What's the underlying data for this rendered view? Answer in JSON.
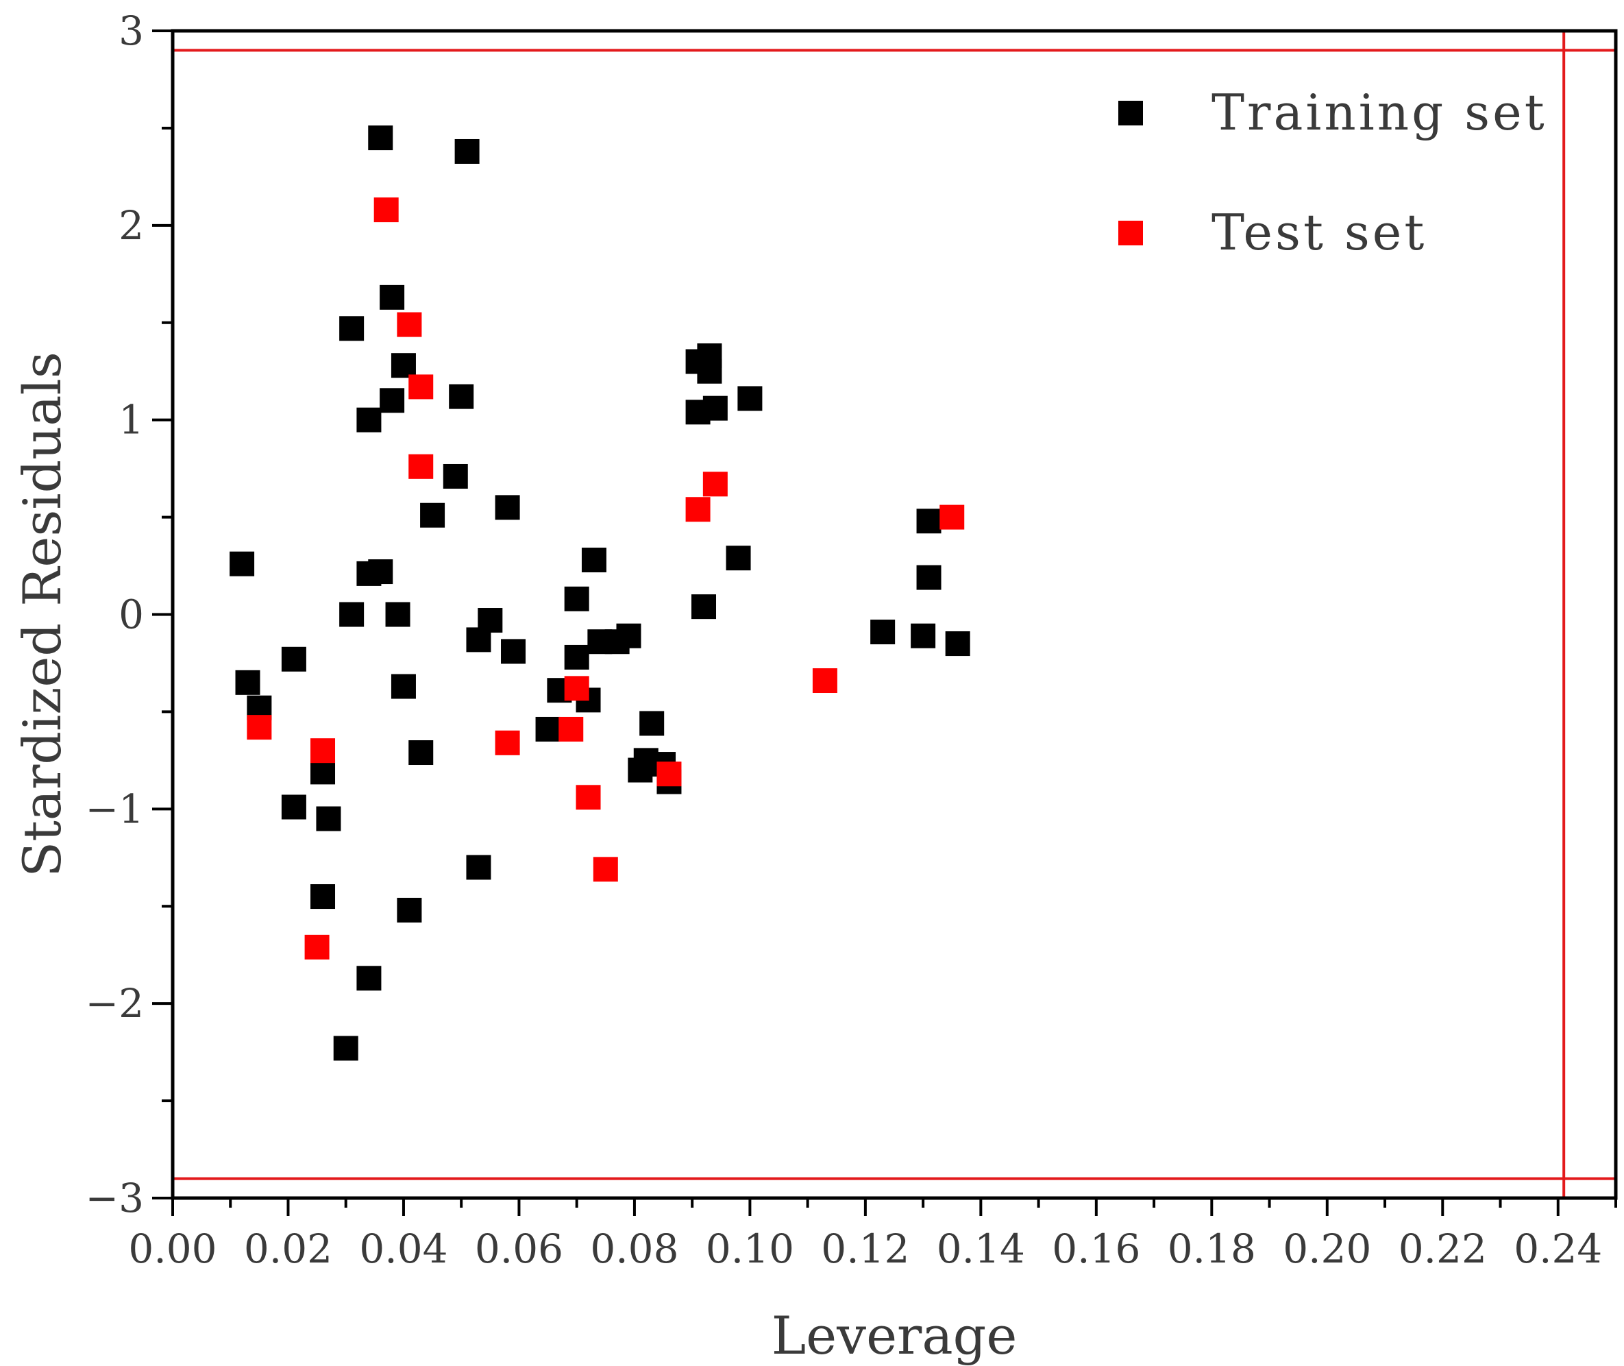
{
  "chart_data": {
    "type": "scatter",
    "title": "",
    "xlabel": "Leverage",
    "ylabel": "Stardized Residuals",
    "xlim": [
      0.0,
      0.25
    ],
    "ylim": [
      -3,
      3
    ],
    "x_ticks": [
      0.0,
      0.02,
      0.04,
      0.06,
      0.08,
      0.1,
      0.12,
      0.14,
      0.16,
      0.18,
      0.2,
      0.22,
      0.24
    ],
    "x_tick_labels": [
      "0.00",
      "0.02",
      "0.04",
      "0.06",
      "0.08",
      "0.10",
      "0.12",
      "0.14",
      "0.16",
      "0.18",
      "0.20",
      "0.22",
      "0.24"
    ],
    "y_ticks": [
      -3,
      -2,
      -1,
      0,
      1,
      2,
      3
    ],
    "y_tick_labels": [
      "−3",
      "−2",
      "−1",
      "0",
      "1",
      "2",
      "3"
    ],
    "grid": false,
    "legend_position": "top-right",
    "reference_lines": {
      "horizontal": [
        2.9,
        -2.9
      ],
      "vertical": [
        0.241
      ],
      "color": "#e31a1c"
    },
    "series": [
      {
        "name": "Training set",
        "color": "#000000",
        "marker": "square",
        "points": [
          [
            0.012,
            0.26
          ],
          [
            0.013,
            -0.35
          ],
          [
            0.015,
            -0.48
          ],
          [
            0.021,
            -0.23
          ],
          [
            0.021,
            -0.99
          ],
          [
            0.026,
            -0.81
          ],
          [
            0.026,
            -1.45
          ],
          [
            0.027,
            -1.05
          ],
          [
            0.03,
            -2.23
          ],
          [
            0.031,
            1.47
          ],
          [
            0.031,
            0.0
          ],
          [
            0.034,
            1.0
          ],
          [
            0.034,
            0.21
          ],
          [
            0.034,
            -1.87
          ],
          [
            0.036,
            2.45
          ],
          [
            0.036,
            0.22
          ],
          [
            0.038,
            1.63
          ],
          [
            0.038,
            1.1
          ],
          [
            0.039,
            0.0
          ],
          [
            0.04,
            1.28
          ],
          [
            0.04,
            -0.37
          ],
          [
            0.041,
            -1.52
          ],
          [
            0.043,
            -0.71
          ],
          [
            0.045,
            0.51
          ],
          [
            0.049,
            0.71
          ],
          [
            0.05,
            1.12
          ],
          [
            0.051,
            2.38
          ],
          [
            0.053,
            -0.13
          ],
          [
            0.053,
            -1.3
          ],
          [
            0.055,
            -0.03
          ],
          [
            0.058,
            0.55
          ],
          [
            0.059,
            -0.19
          ],
          [
            0.065,
            -0.59
          ],
          [
            0.067,
            -0.39
          ],
          [
            0.07,
            0.08
          ],
          [
            0.07,
            -0.22
          ],
          [
            0.072,
            -0.44
          ],
          [
            0.073,
            0.28
          ],
          [
            0.074,
            -0.14
          ],
          [
            0.077,
            -0.14
          ],
          [
            0.079,
            -0.11
          ],
          [
            0.081,
            -0.8
          ],
          [
            0.082,
            -0.75
          ],
          [
            0.083,
            -0.56
          ],
          [
            0.085,
            -0.77
          ],
          [
            0.086,
            -0.86
          ],
          [
            0.091,
            1.04
          ],
          [
            0.091,
            1.3
          ],
          [
            0.092,
            0.04
          ],
          [
            0.093,
            1.25
          ],
          [
            0.093,
            1.33
          ],
          [
            0.094,
            1.06
          ],
          [
            0.098,
            0.29
          ],
          [
            0.1,
            1.11
          ],
          [
            0.123,
            -0.09
          ],
          [
            0.13,
            -0.11
          ],
          [
            0.131,
            0.48
          ],
          [
            0.131,
            0.19
          ],
          [
            0.136,
            -0.15
          ]
        ]
      },
      {
        "name": "Test set",
        "color": "#ff0000",
        "marker": "square",
        "points": [
          [
            0.015,
            -0.58
          ],
          [
            0.025,
            -1.71
          ],
          [
            0.026,
            -0.7
          ],
          [
            0.037,
            2.08
          ],
          [
            0.041,
            1.49
          ],
          [
            0.043,
            1.17
          ],
          [
            0.043,
            0.76
          ],
          [
            0.058,
            -0.66
          ],
          [
            0.069,
            -0.59
          ],
          [
            0.07,
            -0.38
          ],
          [
            0.072,
            -0.94
          ],
          [
            0.075,
            -1.31
          ],
          [
            0.086,
            -0.82
          ],
          [
            0.091,
            0.54
          ],
          [
            0.094,
            0.67
          ],
          [
            0.113,
            -0.34
          ],
          [
            0.135,
            0.5
          ]
        ]
      }
    ]
  }
}
